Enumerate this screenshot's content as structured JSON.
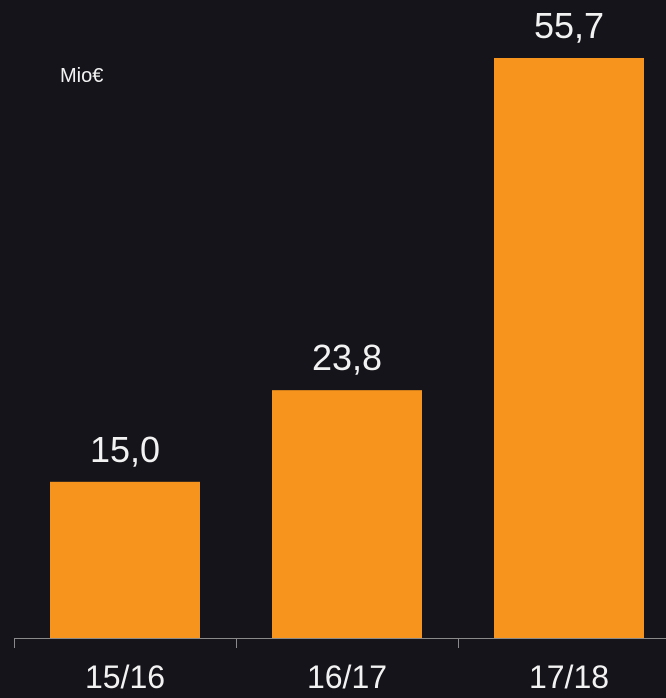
{
  "chart_data": {
    "type": "bar",
    "unit_label": "Mio€",
    "categories": [
      "15/16",
      "16/17",
      "17/18"
    ],
    "values": [
      15.0,
      23.8,
      55.7
    ],
    "value_labels": [
      "15,0",
      "23,8",
      "55,7"
    ],
    "title": "",
    "xlabel": "",
    "ylabel": "",
    "ylim": [
      0,
      55.7
    ],
    "grid": false,
    "legend": "none",
    "colors": {
      "background": "#14141a",
      "bar": "#f7941d",
      "text": "#f2f2f2",
      "axis": "#8a8a8a"
    }
  }
}
